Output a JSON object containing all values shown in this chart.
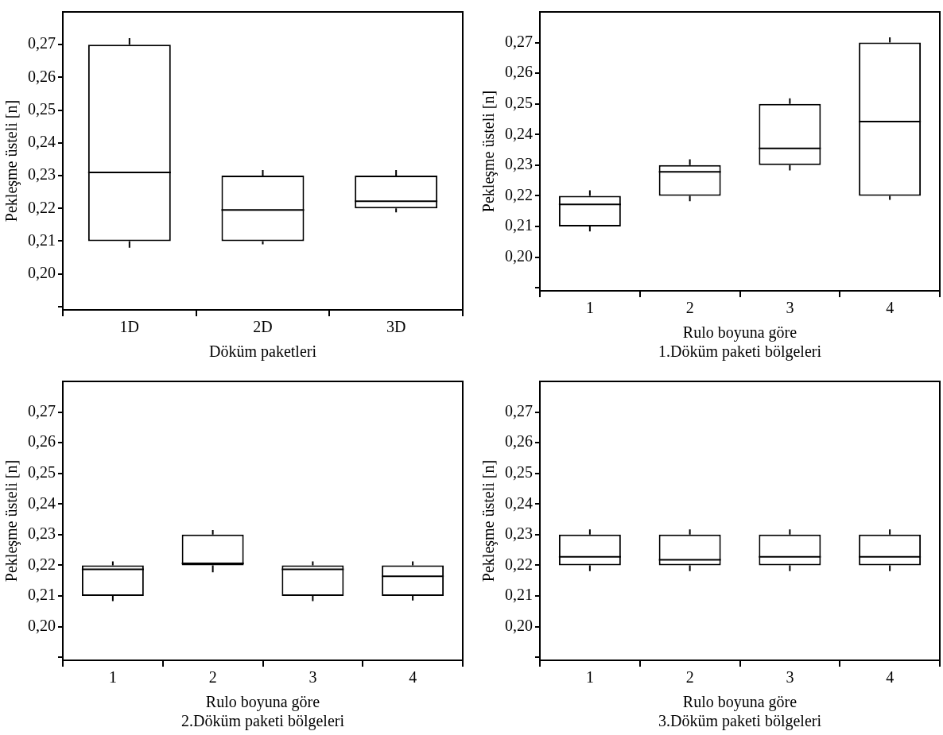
{
  "chart_data": [
    {
      "type": "box",
      "xlabel": "Döküm paketleri",
      "ylabel": "Pekleşme üsteli [n]",
      "categories": [
        "1D",
        "2D",
        "3D"
      ],
      "ylim": [
        0.189,
        0.28
      ],
      "yticks": [
        {
          "value": 0.19,
          "label": null
        },
        {
          "value": 0.2,
          "label": "0,20"
        },
        {
          "value": 0.21,
          "label": "0,21"
        },
        {
          "value": 0.22,
          "label": "0,22"
        },
        {
          "value": 0.23,
          "label": "0,23"
        },
        {
          "value": 0.24,
          "label": "0,24"
        },
        {
          "value": 0.25,
          "label": "0,25"
        },
        {
          "value": 0.26,
          "label": "0,26"
        },
        {
          "value": 0.27,
          "label": "0,27"
        }
      ],
      "boxes": [
        {
          "low": 0.208,
          "q1": 0.21,
          "median": 0.231,
          "q3": 0.27,
          "high": 0.272
        },
        {
          "low": 0.209,
          "q1": 0.21,
          "median": 0.2195,
          "q3": 0.23,
          "high": 0.2317
        },
        {
          "low": 0.2188,
          "q1": 0.22,
          "median": 0.2222,
          "q3": 0.23,
          "high": 0.2317
        }
      ]
    },
    {
      "type": "box",
      "xlabel": "Rulo boyuna göre\n1.Döküm paketi bölgeleri",
      "ylabel": "Pekleşme üsteli [n]",
      "categories": [
        "1",
        "2",
        "3",
        "4"
      ],
      "ylim": [
        0.189,
        0.28
      ],
      "yticks": [
        {
          "value": 0.19,
          "label": null
        },
        {
          "value": 0.2,
          "label": "0,20"
        },
        {
          "value": 0.21,
          "label": "0,21"
        },
        {
          "value": 0.22,
          "label": "0,22"
        },
        {
          "value": 0.23,
          "label": "0,23"
        },
        {
          "value": 0.24,
          "label": "0,24"
        },
        {
          "value": 0.25,
          "label": "0,25"
        },
        {
          "value": 0.26,
          "label": "0,26"
        },
        {
          "value": 0.27,
          "label": "0,27"
        }
      ],
      "boxes": [
        {
          "low": 0.2084,
          "q1": 0.21,
          "median": 0.2172,
          "q3": 0.22,
          "high": 0.2218
        },
        {
          "low": 0.2182,
          "q1": 0.22,
          "median": 0.2278,
          "q3": 0.23,
          "high": 0.2319
        },
        {
          "low": 0.2283,
          "q1": 0.23,
          "median": 0.2355,
          "q3": 0.25,
          "high": 0.2518
        },
        {
          "low": 0.2187,
          "q1": 0.22,
          "median": 0.2442,
          "q3": 0.27,
          "high": 0.2717
        }
      ]
    },
    {
      "type": "box",
      "xlabel": "Rulo boyuna göre\n2.Döküm paketi bölgeleri",
      "ylabel": "Pekleşme üsteli [n]",
      "categories": [
        "1",
        "2",
        "3",
        "4"
      ],
      "ylim": [
        0.189,
        0.28
      ],
      "yticks": [
        {
          "value": 0.19,
          "label": null
        },
        {
          "value": 0.2,
          "label": "0,20"
        },
        {
          "value": 0.21,
          "label": "0,21"
        },
        {
          "value": 0.22,
          "label": "0,22"
        },
        {
          "value": 0.23,
          "label": "0,23"
        },
        {
          "value": 0.24,
          "label": "0,24"
        },
        {
          "value": 0.25,
          "label": "0,25"
        },
        {
          "value": 0.26,
          "label": "0,26"
        },
        {
          "value": 0.27,
          "label": "0,27"
        }
      ],
      "boxes": [
        {
          "low": 0.2083,
          "q1": 0.21,
          "median": 0.2187,
          "q3": 0.22,
          "high": 0.2213
        },
        {
          "low": 0.2177,
          "q1": 0.22,
          "median": 0.2206,
          "q3": 0.23,
          "high": 0.2315
        },
        {
          "low": 0.2083,
          "q1": 0.21,
          "median": 0.2187,
          "q3": 0.22,
          "high": 0.2213
        },
        {
          "low": 0.2085,
          "q1": 0.21,
          "median": 0.2164,
          "q3": 0.22,
          "high": 0.2213
        }
      ]
    },
    {
      "type": "box",
      "xlabel": "Rulo boyuna göre\n3.Döküm paketi bölgeleri",
      "ylabel": "Pekleşme üsteli [n]",
      "categories": [
        "1",
        "2",
        "3",
        "4"
      ],
      "ylim": [
        0.189,
        0.28
      ],
      "yticks": [
        {
          "value": 0.19,
          "label": null
        },
        {
          "value": 0.2,
          "label": "0,20"
        },
        {
          "value": 0.21,
          "label": "0,21"
        },
        {
          "value": 0.22,
          "label": "0,22"
        },
        {
          "value": 0.23,
          "label": "0,23"
        },
        {
          "value": 0.24,
          "label": "0,24"
        },
        {
          "value": 0.25,
          "label": "0,25"
        },
        {
          "value": 0.26,
          "label": "0,26"
        },
        {
          "value": 0.27,
          "label": "0,27"
        }
      ],
      "boxes": [
        {
          "low": 0.2181,
          "q1": 0.22,
          "median": 0.2228,
          "q3": 0.23,
          "high": 0.2317
        },
        {
          "low": 0.2181,
          "q1": 0.22,
          "median": 0.2218,
          "q3": 0.23,
          "high": 0.2317
        },
        {
          "low": 0.2181,
          "q1": 0.22,
          "median": 0.2228,
          "q3": 0.23,
          "high": 0.2317
        },
        {
          "low": 0.2181,
          "q1": 0.22,
          "median": 0.2228,
          "q3": 0.23,
          "high": 0.2317
        }
      ]
    }
  ]
}
